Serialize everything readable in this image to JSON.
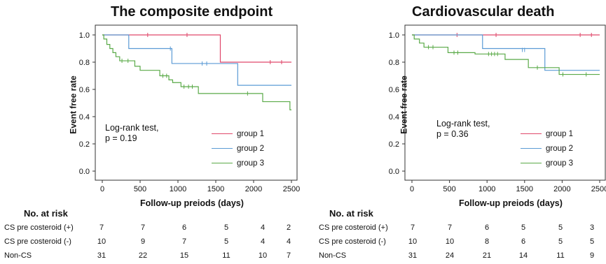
{
  "chart_data": [
    {
      "type": "line",
      "title": "The composite endpoint",
      "xlabel": "Follow-up preiods (days)",
      "ylabel": "Event free rate",
      "xlim": [
        0,
        2500
      ],
      "ylim": [
        0.0,
        1.0
      ],
      "x_ticks": [
        "0",
        "500",
        "1000",
        "1500",
        "2000",
        "2500"
      ],
      "y_ticks": [
        "0.0",
        "0.2",
        "0.4",
        "0.6",
        "0.8",
        "1.0"
      ],
      "annotation": [
        "Log-rank test,",
        "p = 0.19"
      ],
      "legend_position": "right",
      "series": [
        {
          "name": "group 1",
          "color": "#e0476a",
          "steps": [
            [
              0,
              1.0
            ],
            [
              1560,
              0.8
            ],
            [
              2500,
              0.8
            ]
          ],
          "censors": [
            [
              600,
              1.0
            ],
            [
              1120,
              1.0
            ],
            [
              2220,
              0.8
            ],
            [
              2370,
              0.8
            ]
          ]
        },
        {
          "name": "group 2",
          "color": "#5b9bd5",
          "steps": [
            [
              0,
              1.0
            ],
            [
              350,
              0.9
            ],
            [
              920,
              0.79
            ],
            [
              1790,
              0.63
            ],
            [
              2500,
              0.63
            ]
          ],
          "censors": [
            [
              900,
              0.9
            ],
            [
              1320,
              0.79
            ],
            [
              1380,
              0.79
            ]
          ]
        },
        {
          "name": "group 3",
          "color": "#5aaa48",
          "steps": [
            [
              0,
              1.0
            ],
            [
              20,
              0.97
            ],
            [
              60,
              0.93
            ],
            [
              100,
              0.9
            ],
            [
              140,
              0.87
            ],
            [
              180,
              0.84
            ],
            [
              230,
              0.81
            ],
            [
              430,
              0.77
            ],
            [
              500,
              0.74
            ],
            [
              760,
              0.7
            ],
            [
              880,
              0.67
            ],
            [
              930,
              0.65
            ],
            [
              1040,
              0.62
            ],
            [
              1270,
              0.57
            ],
            [
              2120,
              0.51
            ],
            [
              2480,
              0.45
            ],
            [
              2500,
              0.45
            ]
          ],
          "censors": [
            [
              260,
              0.81
            ],
            [
              340,
              0.81
            ],
            [
              800,
              0.7
            ],
            [
              850,
              0.7
            ],
            [
              1080,
              0.62
            ],
            [
              1140,
              0.62
            ],
            [
              1190,
              0.62
            ],
            [
              1920,
              0.57
            ]
          ]
        }
      ],
      "risk_table": {
        "header": "No. at risk",
        "rows": [
          {
            "label": "CS pre costeroid (+)",
            "values": [
              "7",
              "7",
              "6",
              "5",
              "4",
              "2"
            ]
          },
          {
            "label": "CS pre costeroid (-)",
            "values": [
              "10",
              "9",
              "7",
              "5",
              "4",
              "4"
            ]
          },
          {
            "label": "Non-CS",
            "values": [
              "31",
              "22",
              "15",
              "11",
              "10",
              "7"
            ]
          }
        ]
      }
    },
    {
      "type": "line",
      "title": "Cardiovascular death",
      "xlabel": "Follow-up preiods (days)",
      "ylabel": "Event free rate",
      "xlim": [
        0,
        2500
      ],
      "ylim": [
        0.0,
        1.0
      ],
      "x_ticks": [
        "0",
        "500",
        "1000",
        "1500",
        "2000",
        "2500"
      ],
      "y_ticks": [
        "0.0",
        "0.2",
        "0.4",
        "0.6",
        "0.8",
        "1.0"
      ],
      "annotation": [
        "Log-rank test,",
        "p = 0.36"
      ],
      "legend_position": "right",
      "series": [
        {
          "name": "group 1",
          "color": "#e0476a",
          "steps": [
            [
              0,
              1.0
            ],
            [
              2500,
              1.0
            ]
          ],
          "censors": [
            [
              600,
              1.0
            ],
            [
              1120,
              1.0
            ],
            [
              2240,
              1.0
            ],
            [
              2390,
              1.0
            ]
          ]
        },
        {
          "name": "group 2",
          "color": "#5b9bd5",
          "steps": [
            [
              0,
              1.0
            ],
            [
              940,
              0.9
            ],
            [
              1770,
              0.74
            ],
            [
              2500,
              0.74
            ]
          ],
          "censors": [
            [
              1470,
              0.89
            ],
            [
              1500,
              0.89
            ]
          ]
        },
        {
          "name": "group 3",
          "color": "#5aaa48",
          "steps": [
            [
              0,
              1.0
            ],
            [
              30,
              0.97
            ],
            [
              100,
              0.94
            ],
            [
              160,
              0.91
            ],
            [
              480,
              0.87
            ],
            [
              840,
              0.86
            ],
            [
              1240,
              0.82
            ],
            [
              1550,
              0.76
            ],
            [
              1960,
              0.71
            ],
            [
              2500,
              0.71
            ]
          ],
          "censors": [
            [
              220,
              0.91
            ],
            [
              280,
              0.91
            ],
            [
              560,
              0.87
            ],
            [
              610,
              0.87
            ],
            [
              1020,
              0.86
            ],
            [
              1060,
              0.86
            ],
            [
              1100,
              0.86
            ],
            [
              1140,
              0.86
            ],
            [
              1670,
              0.76
            ],
            [
              2010,
              0.71
            ],
            [
              2320,
              0.71
            ]
          ]
        }
      ],
      "risk_table": {
        "header": "No. at risk",
        "rows": [
          {
            "label": "CS pre costeroid (+)",
            "values": [
              "7",
              "7",
              "6",
              "5",
              "5",
              "3"
            ]
          },
          {
            "label": "CS pre costeroid (-)",
            "values": [
              "10",
              "10",
              "8",
              "6",
              "5",
              "5"
            ]
          },
          {
            "label": "Non-CS",
            "values": [
              "31",
              "24",
              "21",
              "14",
              "11",
              "9"
            ]
          }
        ]
      }
    }
  ]
}
